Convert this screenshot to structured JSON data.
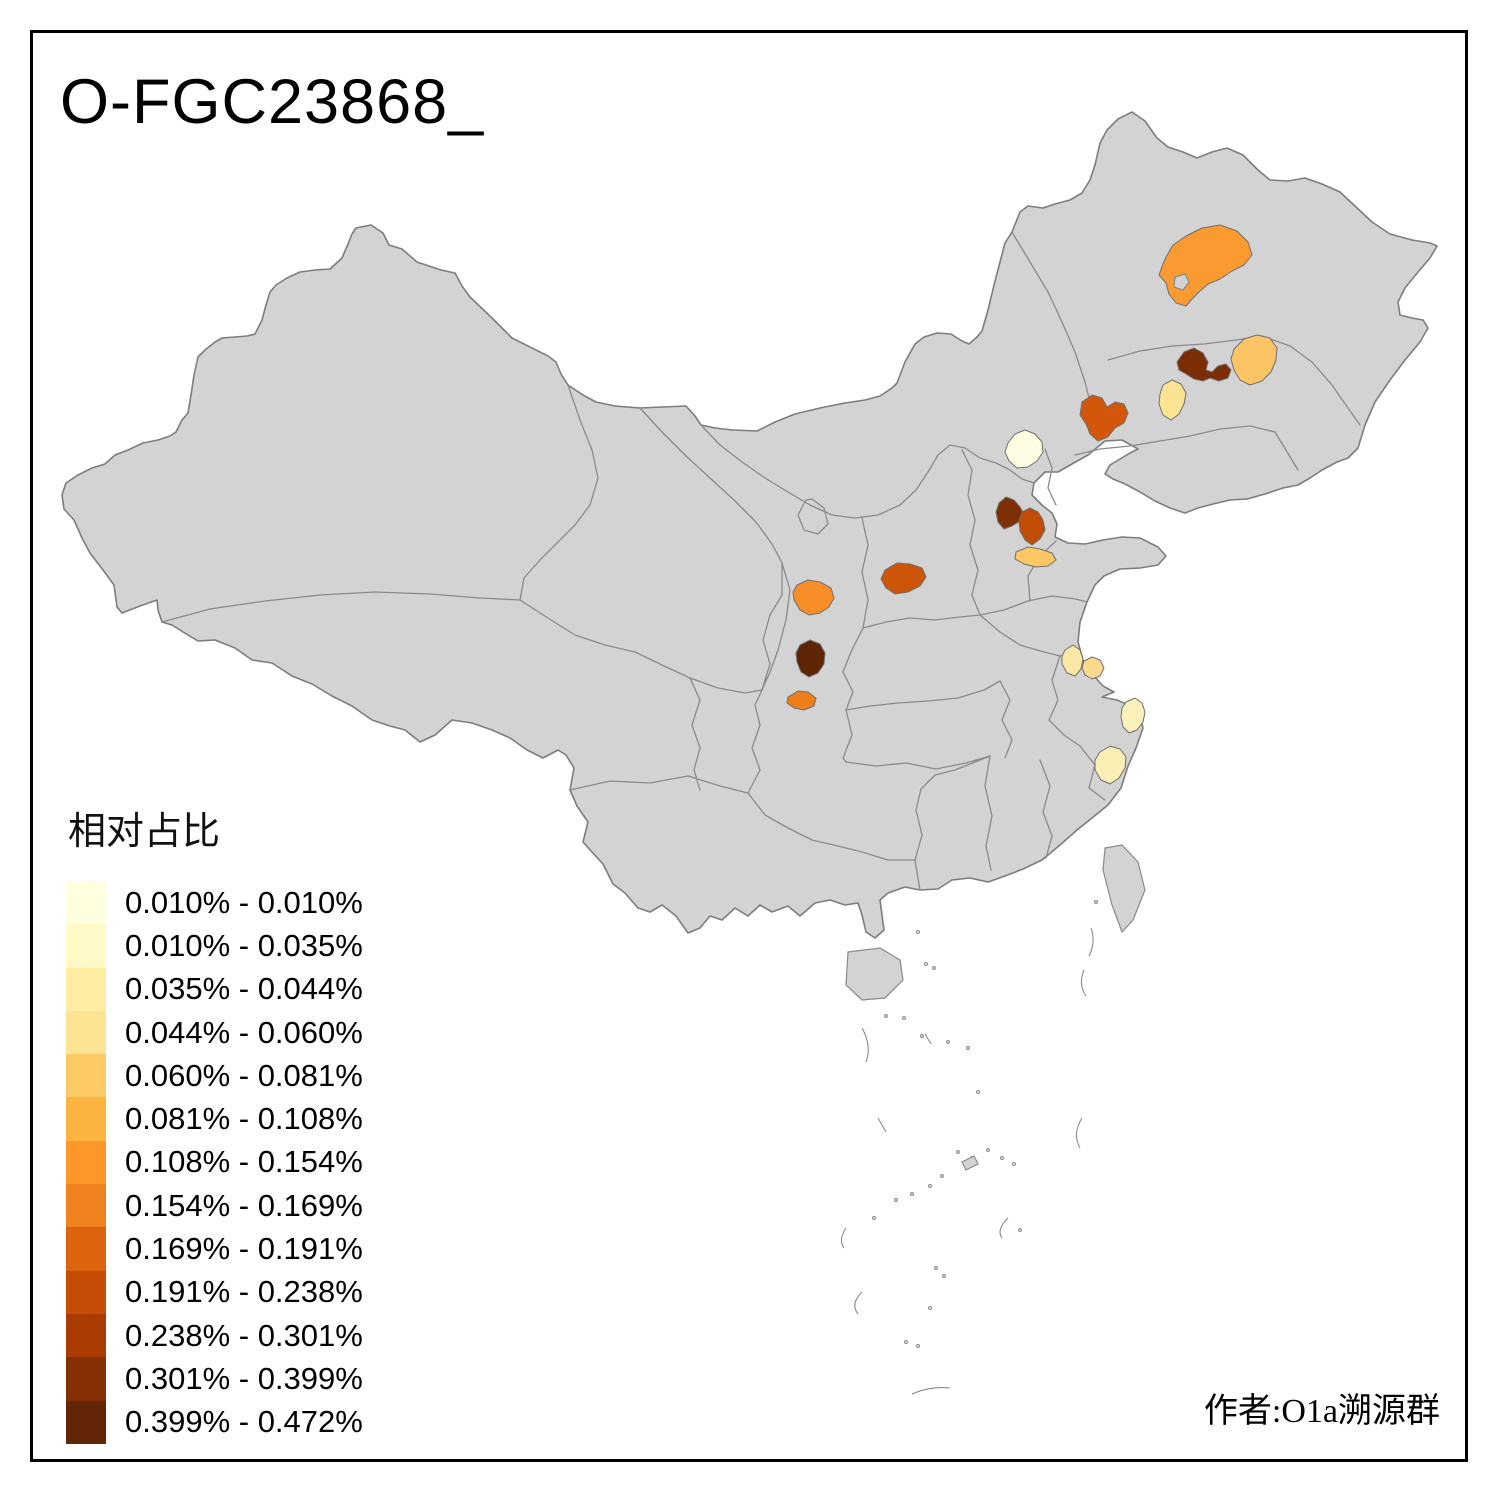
{
  "title": "O-FGC23868_",
  "attribution": "作者:O1a溯源群",
  "legend": {
    "title": "相对占比",
    "classes": [
      {
        "label": "0.010% - 0.010%",
        "color": "#FFFEDF"
      },
      {
        "label": "0.010% - 0.035%",
        "color": "#FFF8C7"
      },
      {
        "label": "0.035% - 0.044%",
        "color": "#FEEDA2"
      },
      {
        "label": "0.044% - 0.060%",
        "color": "#FDE492"
      },
      {
        "label": "0.060% - 0.081%",
        "color": "#FDCB65"
      },
      {
        "label": "0.081% - 0.108%",
        "color": "#FCB441"
      },
      {
        "label": "0.108% - 0.154%",
        "color": "#FC982A"
      },
      {
        "label": "0.154% - 0.169%",
        "color": "#EF821E"
      },
      {
        "label": "0.169% - 0.191%",
        "color": "#DC640E"
      },
      {
        "label": "0.191% - 0.238%",
        "color": "#C54D05"
      },
      {
        "label": "0.238% - 0.301%",
        "color": "#A93B03"
      },
      {
        "label": "0.301% - 0.399%",
        "color": "#853004"
      },
      {
        "label": "0.399% - 0.472%",
        "color": "#622505"
      }
    ]
  },
  "map": {
    "background": "#FFFFFF",
    "land_color": "#D3D3D3",
    "border_color": "#8A8A8A",
    "frame_color": "#000000",
    "regions": [
      {
        "id": "region-1",
        "color": "#FB9A30"
      },
      {
        "id": "region-2",
        "color": "#7B2D05"
      },
      {
        "id": "region-3",
        "color": "#FDC466"
      },
      {
        "id": "region-4",
        "color": "#FCE392"
      },
      {
        "id": "region-5",
        "color": "#D2570A"
      },
      {
        "id": "region-6",
        "color": "#FEFDE2"
      },
      {
        "id": "region-7",
        "color": "#7E2F06"
      },
      {
        "id": "region-8",
        "color": "#C24D06"
      },
      {
        "id": "region-9",
        "color": "#FDC763"
      },
      {
        "id": "region-10",
        "color": "#CC5508"
      },
      {
        "id": "region-11",
        "color": "#F78E28"
      },
      {
        "id": "region-12",
        "color": "#5E2505"
      },
      {
        "id": "region-13",
        "color": "#EE7D1C"
      },
      {
        "id": "region-14",
        "color": "#FCE8A6"
      },
      {
        "id": "region-15",
        "color": "#FBD98C"
      },
      {
        "id": "region-16",
        "color": "#FAF0BA"
      },
      {
        "id": "region-17",
        "color": "#FAEFB5"
      }
    ]
  }
}
